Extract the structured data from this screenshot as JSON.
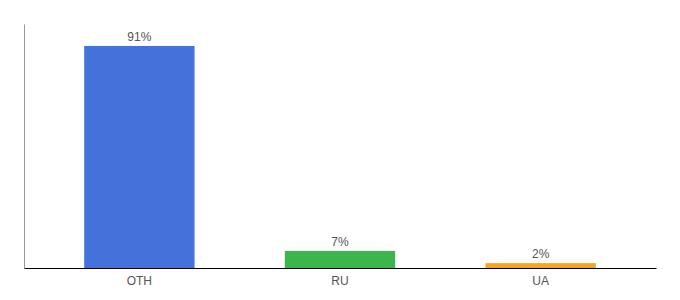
{
  "chart_data": {
    "type": "bar",
    "categories": [
      "OTH",
      "RU",
      "UA"
    ],
    "values": [
      91,
      7,
      2
    ],
    "value_labels": [
      "91%",
      "7%",
      "2%"
    ],
    "colors": [
      "#4472db",
      "#3cb54a",
      "#f5a623"
    ],
    "ylim": [
      0,
      100
    ],
    "data_labels": true,
    "tick_labels": "x"
  }
}
